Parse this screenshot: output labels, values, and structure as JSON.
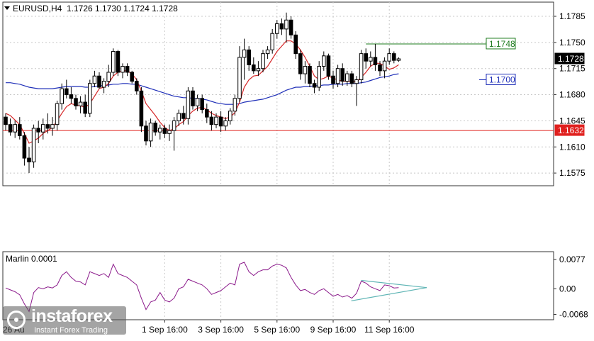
{
  "chart_data": {
    "type": "candlestick",
    "symbol_label": "EURUSD,H4",
    "ohlc_header": "1.1726 1.1730 1.1724 1.1728",
    "price_axis": {
      "ticks": [
        "1.1785",
        "1.1750",
        "1.1715",
        "1.1680",
        "1.1645",
        "1.1610",
        "1.1575"
      ],
      "range": [
        1.1558,
        1.1804
      ]
    },
    "x_axis": {
      "ticks": [
        {
          "label": "1 Sep 16:00",
          "bar": 34
        },
        {
          "label": "3 Sep 16:00",
          "bar": 46
        },
        {
          "label": "5 Sep 16:00",
          "bar": 58
        },
        {
          "label": "9 Sep 16:00",
          "bar": 70
        },
        {
          "label": "11 Sep 16:00",
          "bar": 82
        }
      ]
    },
    "candles": [
      [
        1.165,
        1.1655,
        1.1632,
        1.164
      ],
      [
        1.164,
        1.1648,
        1.1625,
        1.163
      ],
      [
        1.163,
        1.1645,
        1.1622,
        1.164
      ],
      [
        1.164,
        1.165,
        1.162,
        1.1625
      ],
      [
        1.1625,
        1.163,
        1.1585,
        1.1595
      ],
      [
        1.1595,
        1.161,
        1.1575,
        1.159
      ],
      [
        1.159,
        1.164,
        1.1582,
        1.1635
      ],
      [
        1.1635,
        1.1645,
        1.1615,
        1.163
      ],
      [
        1.163,
        1.1648,
        1.162,
        1.164
      ],
      [
        1.164,
        1.1655,
        1.1628,
        1.1635
      ],
      [
        1.1635,
        1.165,
        1.1625,
        1.164
      ],
      [
        1.164,
        1.1672,
        1.1632,
        1.1668
      ],
      [
        1.1668,
        1.1695,
        1.166,
        1.1688
      ],
      [
        1.1688,
        1.17,
        1.1675,
        1.168
      ],
      [
        1.168,
        1.169,
        1.1668,
        1.1675
      ],
      [
        1.1675,
        1.168,
        1.166,
        1.1665
      ],
      [
        1.1665,
        1.1678,
        1.1655,
        1.167
      ],
      [
        1.167,
        1.168,
        1.165,
        1.1655
      ],
      [
        1.1655,
        1.17,
        1.165,
        1.1695
      ],
      [
        1.1695,
        1.1712,
        1.169,
        1.1705
      ],
      [
        1.1705,
        1.171,
        1.1688,
        1.169
      ],
      [
        1.169,
        1.1702,
        1.1682,
        1.1698
      ],
      [
        1.1698,
        1.172,
        1.169,
        1.171
      ],
      [
        1.171,
        1.1742,
        1.1705,
        1.1738
      ],
      [
        1.1738,
        1.174,
        1.1705,
        1.171
      ],
      [
        1.171,
        1.1722,
        1.1702,
        1.1718
      ],
      [
        1.1718,
        1.1722,
        1.1705,
        1.171
      ],
      [
        1.171,
        1.1712,
        1.1695,
        1.1698
      ],
      [
        1.1698,
        1.1702,
        1.168,
        1.1685
      ],
      [
        1.1685,
        1.169,
        1.163,
        1.1638
      ],
      [
        1.1638,
        1.1645,
        1.1612,
        1.1618
      ],
      [
        1.1618,
        1.1648,
        1.161,
        1.1642
      ],
      [
        1.1642,
        1.1645,
        1.1625,
        1.163
      ],
      [
        1.163,
        1.164,
        1.162,
        1.1635
      ],
      [
        1.1635,
        1.164,
        1.1622,
        1.1628
      ],
      [
        1.1628,
        1.164,
        1.1618,
        1.1632
      ],
      [
        1.1632,
        1.165,
        1.1605,
        1.1645
      ],
      [
        1.1645,
        1.166,
        1.1638,
        1.1655
      ],
      [
        1.1655,
        1.1665,
        1.164,
        1.1648
      ],
      [
        1.1648,
        1.169,
        1.164,
        1.1685
      ],
      [
        1.1685,
        1.169,
        1.166,
        1.1665
      ],
      [
        1.1665,
        1.168,
        1.1658,
        1.1675
      ],
      [
        1.1675,
        1.168,
        1.1655,
        1.166
      ],
      [
        1.166,
        1.1668,
        1.1642,
        1.165
      ],
      [
        1.165,
        1.1658,
        1.1632,
        1.164
      ],
      [
        1.164,
        1.1655,
        1.1635,
        1.165
      ],
      [
        1.165,
        1.1658,
        1.163,
        1.1638
      ],
      [
        1.1638,
        1.165,
        1.1632,
        1.1645
      ],
      [
        1.1645,
        1.1662,
        1.164,
        1.1658
      ],
      [
        1.1658,
        1.168,
        1.1652,
        1.1675
      ],
      [
        1.1675,
        1.1745,
        1.167,
        1.173
      ],
      [
        1.173,
        1.1755,
        1.17,
        1.174
      ],
      [
        1.174,
        1.1745,
        1.1712,
        1.172
      ],
      [
        1.172,
        1.173,
        1.1708,
        1.1712
      ],
      [
        1.1712,
        1.1725,
        1.1705,
        1.1715
      ],
      [
        1.1715,
        1.174,
        1.171,
        1.1735
      ],
      [
        1.1735,
        1.1745,
        1.1728,
        1.174
      ],
      [
        1.174,
        1.1768,
        1.1735,
        1.1762
      ],
      [
        1.1762,
        1.178,
        1.1755,
        1.1775
      ],
      [
        1.1775,
        1.1782,
        1.176,
        1.1768
      ],
      [
        1.1768,
        1.179,
        1.175,
        1.178
      ],
      [
        1.178,
        1.1785,
        1.1755,
        1.176
      ],
      [
        1.176,
        1.1765,
        1.1728,
        1.1735
      ],
      [
        1.1735,
        1.174,
        1.17,
        1.1708
      ],
      [
        1.1708,
        1.1725,
        1.1695,
        1.1718
      ],
      [
        1.1718,
        1.1722,
        1.169,
        1.1695
      ],
      [
        1.1695,
        1.17,
        1.1682,
        1.169
      ],
      [
        1.169,
        1.1725,
        1.1685,
        1.1718
      ],
      [
        1.1718,
        1.1738,
        1.1712,
        1.1732
      ],
      [
        1.1732,
        1.1735,
        1.17,
        1.1705
      ],
      [
        1.1705,
        1.1712,
        1.1688,
        1.1695
      ],
      [
        1.1695,
        1.172,
        1.169,
        1.1715
      ],
      [
        1.1715,
        1.1722,
        1.1692,
        1.1698
      ],
      [
        1.1698,
        1.1712,
        1.1692,
        1.1708
      ],
      [
        1.1708,
        1.1712,
        1.169,
        1.1695
      ],
      [
        1.1695,
        1.1705,
        1.1665,
        1.17
      ],
      [
        1.17,
        1.174,
        1.1695,
        1.1735
      ],
      [
        1.1735,
        1.1742,
        1.1715,
        1.1725
      ],
      [
        1.1725,
        1.1738,
        1.1718,
        1.173
      ],
      [
        1.173,
        1.1748,
        1.1712,
        1.172
      ],
      [
        1.172,
        1.1725,
        1.1705,
        1.1712
      ],
      [
        1.1712,
        1.173,
        1.1702,
        1.1725
      ],
      [
        1.1725,
        1.1742,
        1.172,
        1.1735
      ],
      [
        1.1735,
        1.1738,
        1.1722,
        1.1726
      ],
      [
        1.1726,
        1.173,
        1.1724,
        1.1728
      ]
    ],
    "fast_ma": [
      1.1655,
      1.1652,
      1.1646,
      1.164,
      1.1628,
      1.1615,
      1.1618,
      1.1622,
      1.1628,
      1.1632,
      1.1636,
      1.1645,
      1.1655,
      1.1664,
      1.1668,
      1.1666,
      1.1665,
      1.1663,
      1.1668,
      1.1678,
      1.1688,
      1.169,
      1.1695,
      1.1705,
      1.171,
      1.1712,
      1.1712,
      1.1708,
      1.17,
      1.1685,
      1.1668,
      1.166,
      1.1652,
      1.1643,
      1.1636,
      1.1632,
      1.1634,
      1.164,
      1.1644,
      1.1652,
      1.1658,
      1.1662,
      1.1663,
      1.166,
      1.1655,
      1.1652,
      1.165,
      1.1648,
      1.165,
      1.1656,
      1.167,
      1.169,
      1.17,
      1.1705,
      1.1706,
      1.1712,
      1.1718,
      1.1728,
      1.1738,
      1.1745,
      1.1752,
      1.1752,
      1.1748,
      1.174,
      1.173,
      1.1718,
      1.1705,
      1.17,
      1.1702,
      1.1705,
      1.1702,
      1.17,
      1.1698,
      1.1698,
      1.1698,
      1.1697,
      1.1703,
      1.171,
      1.1718,
      1.1722,
      1.1722,
      1.1718,
      1.1714,
      1.1716,
      1.172
    ],
    "slow_ma": [
      1.1696,
      1.1696,
      1.1695,
      1.1694,
      1.1692,
      1.169,
      1.1689,
      1.1688,
      1.1688,
      1.1688,
      1.1688,
      1.1689,
      1.169,
      1.1691,
      1.1691,
      1.1691,
      1.1691,
      1.169,
      1.169,
      1.1691,
      1.1692,
      1.1692,
      1.1693,
      1.1694,
      1.1694,
      1.1695,
      1.1695,
      1.1694,
      1.1694,
      1.1692,
      1.169,
      1.1688,
      1.1686,
      1.1684,
      1.1682,
      1.168,
      1.1678,
      1.1677,
      1.1676,
      1.1676,
      1.1675,
      1.1675,
      1.1674,
      1.1673,
      1.1671,
      1.1669,
      1.1668,
      1.1667,
      1.1667,
      1.1667,
      1.1668,
      1.167,
      1.1671,
      1.1672,
      1.1673,
      1.1674,
      1.1676,
      1.1678,
      1.168,
      1.1683,
      1.1686,
      1.1688,
      1.169,
      1.169,
      1.1691,
      1.1691,
      1.1692,
      1.1692,
      1.1693,
      1.1693,
      1.1694,
      1.1694,
      1.1694,
      1.1695,
      1.1695,
      1.1695,
      1.1696,
      1.1697,
      1.1699,
      1.1701,
      1.1703,
      1.1704,
      1.1705,
      1.1707,
      1.1708
    ],
    "levels": [
      {
        "value": "1.1632",
        "price": 1.1632,
        "color": "#e0201e",
        "style": "full-width"
      },
      {
        "value": "1.1748",
        "price": 1.1748,
        "color": "#1e7b1e",
        "style": "segment",
        "from_bar": 77
      },
      {
        "value": "1.1700",
        "price": 1.17,
        "color": "#1f2fb8",
        "style": "label-only"
      }
    ],
    "current_price": {
      "value": "1.1728",
      "price": 1.1728
    },
    "oscillator": {
      "label": "Marlin 0.0001",
      "ticks": [
        "0.0077",
        "0.00",
        "-0.0068"
      ],
      "range": [
        -0.0082,
        0.0098
      ],
      "values": [
        0.0002,
        -0.0003,
        -0.0008,
        -0.0016,
        -0.004,
        -0.006,
        -0.001,
        0.0003,
        0.0,
        0.0005,
        0.0002,
        0.001,
        0.0035,
        0.0045,
        0.003,
        0.002,
        0.0018,
        0.001,
        0.0045,
        0.004,
        0.0035,
        0.004,
        0.003,
        0.0065,
        0.004,
        0.0035,
        0.003,
        0.002,
        0.001,
        -0.0025,
        -0.0055,
        -0.0035,
        -0.003,
        -0.001,
        -0.003,
        -0.0035,
        -0.0025,
        0.0,
        0.0005,
        0.0025,
        0.002,
        0.0015,
        0.001,
        0.0,
        -0.0015,
        -0.001,
        -0.0005,
        0.0005,
        0.0015,
        0.001,
        0.0065,
        0.007,
        0.0045,
        0.0035,
        0.0045,
        0.005,
        0.005,
        0.006,
        0.0065,
        0.0062,
        0.0055,
        0.003,
        0.001,
        -0.0005,
        -0.0002,
        -0.001,
        -0.0015,
        -0.0005,
        0.0,
        -0.001,
        -0.002,
        -0.0015,
        -0.0022,
        -0.0018,
        -0.0025,
        -0.0012,
        0.002,
        0.0015,
        0.0005,
        0.0,
        -0.0005,
        0.001,
        0.0008,
        0.0002,
        0.0003
      ],
      "triangle": {
        "from_bar": 76,
        "to_bar": 90,
        "upper": [
          0.0022,
          0.0003
        ],
        "lower": [
          -0.0032,
          0.0003
        ]
      },
      "triangle_color": "#5fb5b5"
    },
    "colors": {
      "bull": "#ffffff",
      "bear": "#000000",
      "fast_ma": "#d62728",
      "slow_ma": "#1f2fb8",
      "oscillator": "#8b1a8b",
      "grid": "#c8c8c8"
    }
  },
  "watermark": {
    "brand": "instaforex",
    "tagline": "Instant Forex Trading",
    "first_axis_label": "26 Au"
  }
}
